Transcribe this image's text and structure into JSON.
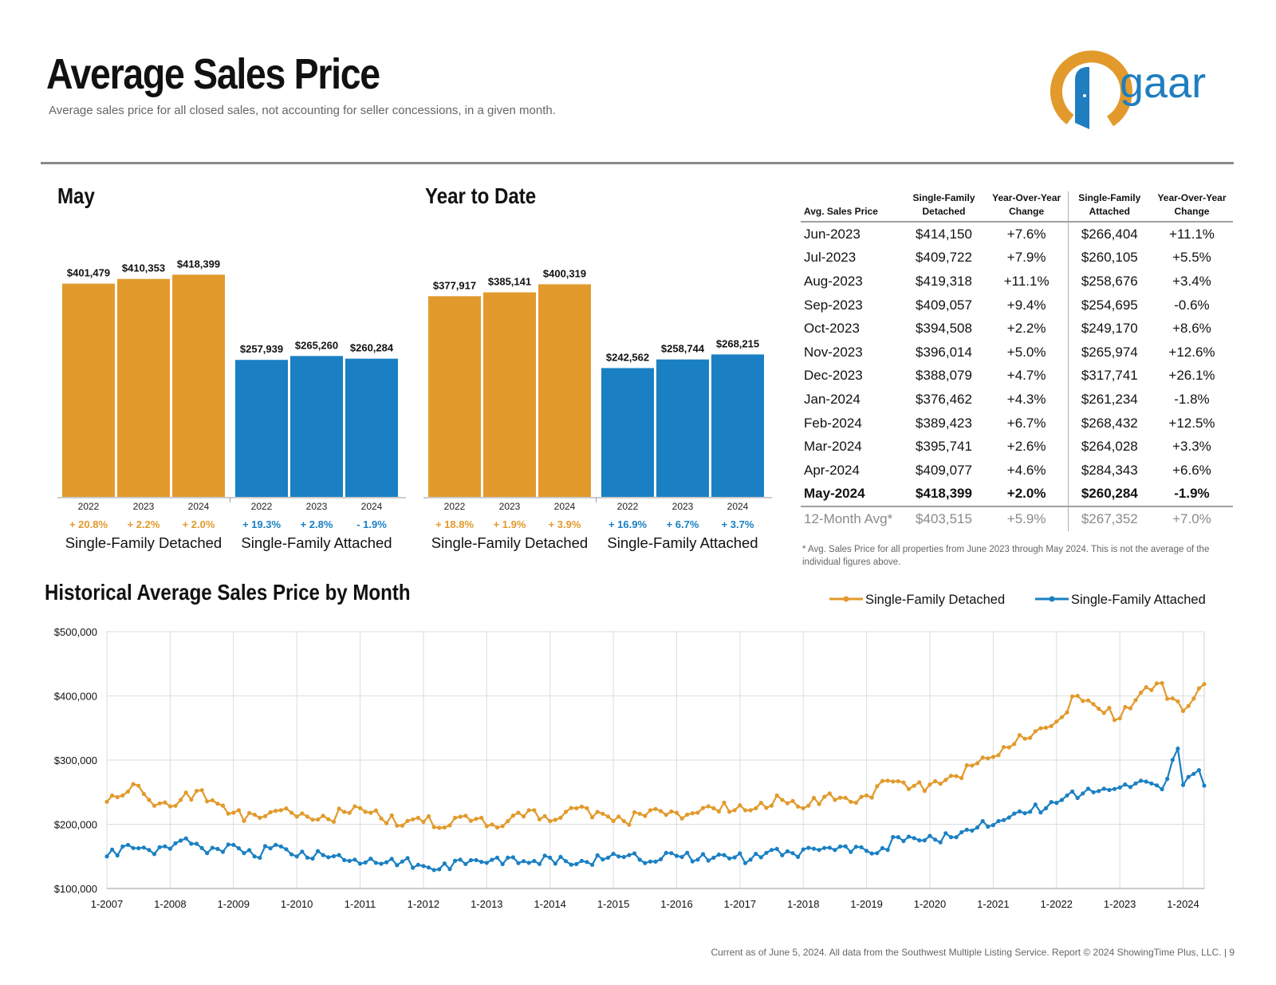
{
  "header": {
    "title": "Average Sales Price",
    "subtitle": "Average sales price for all closed sales, not accounting for seller concessions, in a given month."
  },
  "logo": {
    "text": "gaar",
    "colors": {
      "ring": "#E29A2C",
      "door": "#1E7EC0",
      "text": "#1E7EC0"
    }
  },
  "colors": {
    "detached": "#E29A2C",
    "attached": "#1A80C3",
    "grid": "#DDDDDD"
  },
  "chart_data": [
    {
      "type": "bar",
      "title": "May",
      "groups": [
        {
          "name": "Single-Family Detached",
          "bars": [
            {
              "year": "2022",
              "value": 401479,
              "label": "$401,479",
              "change": "+ 20.8%"
            },
            {
              "year": "2023",
              "value": 410353,
              "label": "$410,353",
              "change": "+ 2.2%"
            },
            {
              "year": "2024",
              "value": 418399,
              "label": "$418,399",
              "change": "+ 2.0%"
            }
          ]
        },
        {
          "name": "Single-Family Attached",
          "bars": [
            {
              "year": "2022",
              "value": 257939,
              "label": "$257,939",
              "change": "+ 19.3%"
            },
            {
              "year": "2023",
              "value": 265260,
              "label": "$265,260",
              "change": "+ 2.8%"
            },
            {
              "year": "2024",
              "value": 260284,
              "label": "$260,284",
              "change": "- 1.9%"
            }
          ]
        }
      ],
      "ylim": [
        0,
        440000
      ]
    },
    {
      "type": "bar",
      "title": "Year to Date",
      "groups": [
        {
          "name": "Single-Family Detached",
          "bars": [
            {
              "year": "2022",
              "value": 377917,
              "label": "$377,917",
              "change": "+ 18.8%"
            },
            {
              "year": "2023",
              "value": 385141,
              "label": "$385,141",
              "change": "+ 1.9%"
            },
            {
              "year": "2024",
              "value": 400319,
              "label": "$400,319",
              "change": "+ 3.9%"
            }
          ]
        },
        {
          "name": "Single-Family Attached",
          "bars": [
            {
              "year": "2022",
              "value": 242562,
              "label": "$242,562",
              "change": "+ 16.9%"
            },
            {
              "year": "2023",
              "value": 258744,
              "label": "$258,744",
              "change": "+ 6.7%"
            },
            {
              "year": "2024",
              "value": 268215,
              "label": "$268,215",
              "change": "+ 3.7%"
            }
          ]
        }
      ],
      "ylim": [
        0,
        440000
      ]
    },
    {
      "type": "table",
      "columns": [
        "Avg. Sales Price",
        "Single-Family Detached",
        "Year-Over-Year Change",
        "Single-Family Attached",
        "Year-Over-Year Change"
      ],
      "rows": [
        [
          "Jun-2023",
          "$414,150",
          "+7.6%",
          "$266,404",
          "+11.1%"
        ],
        [
          "Jul-2023",
          "$409,722",
          "+7.9%",
          "$260,105",
          "+5.5%"
        ],
        [
          "Aug-2023",
          "$419,318",
          "+11.1%",
          "$258,676",
          "+3.4%"
        ],
        [
          "Sep-2023",
          "$409,057",
          "+9.4%",
          "$254,695",
          "-0.6%"
        ],
        [
          "Oct-2023",
          "$394,508",
          "+2.2%",
          "$249,170",
          "+8.6%"
        ],
        [
          "Nov-2023",
          "$396,014",
          "+5.0%",
          "$265,974",
          "+12.6%"
        ],
        [
          "Dec-2023",
          "$388,079",
          "+4.7%",
          "$317,741",
          "+26.1%"
        ],
        [
          "Jan-2024",
          "$376,462",
          "+4.3%",
          "$261,234",
          "-1.8%"
        ],
        [
          "Feb-2024",
          "$389,423",
          "+6.7%",
          "$268,432",
          "+12.5%"
        ],
        [
          "Mar-2024",
          "$395,741",
          "+2.6%",
          "$264,028",
          "+3.3%"
        ],
        [
          "Apr-2024",
          "$409,077",
          "+4.6%",
          "$284,343",
          "+6.6%"
        ],
        [
          "May-2024",
          "$418,399",
          "+2.0%",
          "$260,284",
          "-1.9%"
        ]
      ],
      "summary": [
        "12-Month Avg*",
        "$403,515",
        "+5.9%",
        "$267,352",
        "+7.0%"
      ],
      "note": "* Avg. Sales Price for all properties from June 2023 through May 2024. This is not the average of the individual figures above."
    },
    {
      "type": "line",
      "title": "Historical Average Sales Price by Month",
      "x_start": "2007-01",
      "x_end": "2024-05",
      "xticks": [
        "1-2007",
        "1-2008",
        "1-2009",
        "1-2010",
        "1-2011",
        "1-2012",
        "1-2013",
        "1-2014",
        "1-2015",
        "1-2016",
        "1-2017",
        "1-2018",
        "1-2019",
        "1-2020",
        "1-2021",
        "1-2022",
        "1-2023",
        "1-2024"
      ],
      "yticks": [
        "$100,000",
        "$200,000",
        "$300,000",
        "$400,000",
        "$500,000"
      ],
      "ylim": [
        100000,
        500000
      ],
      "legend": "top-right",
      "series": [
        {
          "name": "Single-Family Detached",
          "points": [
            [
              "2007-01",
              235000
            ],
            [
              "2007-07",
              260000
            ],
            [
              "2007-09",
              238000
            ],
            [
              "2008-01",
              228000
            ],
            [
              "2008-06",
              252000
            ],
            [
              "2008-10",
              232000
            ],
            [
              "2009-01",
              218000
            ],
            [
              "2009-06",
              210000
            ],
            [
              "2009-10",
              222000
            ],
            [
              "2010-01",
              212000
            ],
            [
              "2010-07",
              208000
            ],
            [
              "2010-12",
              228000
            ],
            [
              "2011-03",
              218000
            ],
            [
              "2011-09",
              198000
            ],
            [
              "2011-12",
              210000
            ],
            [
              "2012-05",
              195000
            ],
            [
              "2012-07",
              210000
            ],
            [
              "2012-12",
              210000
            ],
            [
              "2013-03",
              195000
            ],
            [
              "2013-07",
              218000
            ],
            [
              "2013-10",
              222000
            ],
            [
              "2014-01",
              205000
            ],
            [
              "2014-06",
              225000
            ],
            [
              "2014-12",
              212000
            ],
            [
              "2015-03",
              205000
            ],
            [
              "2015-08",
              222000
            ],
            [
              "2015-12",
              220000
            ],
            [
              "2016-03",
              215000
            ],
            [
              "2016-07",
              228000
            ],
            [
              "2016-12",
              222000
            ],
            [
              "2017-04",
              225000
            ],
            [
              "2017-09",
              238000
            ],
            [
              "2018-01",
              225000
            ],
            [
              "2018-06",
              248000
            ],
            [
              "2018-10",
              235000
            ],
            [
              "2019-01",
              245000
            ],
            [
              "2019-05",
              268000
            ],
            [
              "2019-10",
              260000
            ],
            [
              "2020-01",
              262000
            ],
            [
              "2020-06",
              275000
            ],
            [
              "2020-10",
              295000
            ],
            [
              "2021-01",
              305000
            ],
            [
              "2021-05",
              325000
            ],
            [
              "2021-09",
              345000
            ],
            [
              "2022-01",
              360000
            ],
            [
              "2022-05",
              400000
            ],
            [
              "2022-09",
              380000
            ],
            [
              "2023-01",
              365000
            ],
            [
              "2023-05",
              405000
            ],
            [
              "2023-08",
              419318
            ],
            [
              "2023-11",
              396014
            ],
            [
              "2024-01",
              376462
            ],
            [
              "2024-03",
              395741
            ],
            [
              "2024-05",
              418399
            ]
          ]
        },
        {
          "name": "Single-Family Attached",
          "points": [
            [
              "2007-01",
              150000
            ],
            [
              "2007-05",
              168000
            ],
            [
              "2007-09",
              160000
            ],
            [
              "2008-01",
              162000
            ],
            [
              "2008-04",
              178000
            ],
            [
              "2008-08",
              155000
            ],
            [
              "2009-01",
              168000
            ],
            [
              "2009-05",
              150000
            ],
            [
              "2009-09",
              168000
            ],
            [
              "2010-01",
              150000
            ],
            [
              "2010-06",
              152000
            ],
            [
              "2010-12",
              145000
            ],
            [
              "2011-04",
              140000
            ],
            [
              "2011-09",
              142000
            ],
            [
              "2012-01",
              135000
            ],
            [
              "2012-04",
              130000
            ],
            [
              "2012-08",
              145000
            ],
            [
              "2013-01",
              140000
            ],
            [
              "2013-05",
              148000
            ],
            [
              "2013-09",
              140000
            ],
            [
              "2014-01",
              148000
            ],
            [
              "2014-06",
              138000
            ],
            [
              "2014-12",
              148000
            ],
            [
              "2015-04",
              152000
            ],
            [
              "2015-08",
              142000
            ],
            [
              "2015-12",
              155000
            ],
            [
              "2016-05",
              145000
            ],
            [
              "2016-10",
              152000
            ],
            [
              "2017-03",
              145000
            ],
            [
              "2017-07",
              160000
            ],
            [
              "2017-11",
              155000
            ],
            [
              "2018-03",
              162000
            ],
            [
              "2018-07",
              160000
            ],
            [
              "2018-11",
              165000
            ],
            [
              "2019-03",
              155000
            ],
            [
              "2019-07",
              180000
            ],
            [
              "2019-12",
              175000
            ],
            [
              "2020-05",
              180000
            ],
            [
              "2020-10",
              195000
            ],
            [
              "2021-02",
              205000
            ],
            [
              "2021-06",
              220000
            ],
            [
              "2021-11",
              225000
            ],
            [
              "2022-03",
              245000
            ],
            [
              "2022-08",
              250000
            ],
            [
              "2022-12",
              255000
            ],
            [
              "2023-03",
              258000
            ],
            [
              "2023-06",
              266404
            ],
            [
              "2023-09",
              254695
            ],
            [
              "2023-12",
              317741
            ],
            [
              "2024-01",
              261234
            ],
            [
              "2024-04",
              284343
            ],
            [
              "2024-05",
              260284
            ]
          ]
        }
      ]
    }
  ],
  "footer": "Current as of June 5, 2024. All data from the Southwest Multiple Listing Service. Report © 2024 ShowingTime Plus, LLC.  |  9"
}
